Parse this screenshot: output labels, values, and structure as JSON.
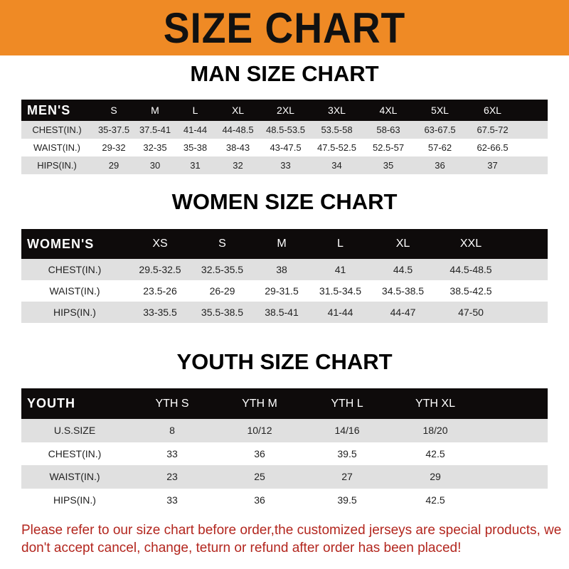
{
  "title": "SIZE CHART",
  "men": {
    "heading": "MAN SIZE CHART",
    "header": [
      "MEN'S",
      "S",
      "M",
      "L",
      "XL",
      "2XL",
      "3XL",
      "4XL",
      "5XL",
      "6XL"
    ],
    "rows": [
      [
        "CHEST(IN.)",
        "35-37.5",
        "37.5-41",
        "41-44",
        "44-48.5",
        "48.5-53.5",
        "53.5-58",
        "58-63",
        "63-67.5",
        "67.5-72"
      ],
      [
        "WAIST(IN.)",
        "29-32",
        "32-35",
        "35-38",
        "38-43",
        "43-47.5",
        "47.5-52.5",
        "52.5-57",
        "57-62",
        "62-66.5"
      ],
      [
        "HIPS(IN.)",
        "29",
        "30",
        "31",
        "32",
        "33",
        "34",
        "35",
        "36",
        "37"
      ]
    ]
  },
  "women": {
    "heading": "WOMEN SIZE CHART",
    "header": [
      "WOMEN'S",
      "XS",
      "S",
      "M",
      "L",
      "XL",
      "XXL"
    ],
    "rows": [
      [
        "CHEST(IN.)",
        "29.5-32.5",
        "32.5-35.5",
        "38",
        "41",
        "44.5",
        "44.5-48.5"
      ],
      [
        "WAIST(IN.)",
        "23.5-26",
        "26-29",
        "29-31.5",
        "31.5-34.5",
        "34.5-38.5",
        "38.5-42.5"
      ],
      [
        "HIPS(IN.)",
        "33-35.5",
        "35.5-38.5",
        "38.5-41",
        "41-44",
        "44-47",
        "47-50"
      ]
    ]
  },
  "youth": {
    "heading": "YOUTH SIZE CHART",
    "header": [
      "YOUTH",
      "YTH S",
      "YTH M",
      "YTH L",
      "YTH XL"
    ],
    "rows": [
      [
        "U.S.SIZE",
        "8",
        "10/12",
        "14/16",
        "18/20"
      ],
      [
        "CHEST(IN.)",
        "33",
        "36",
        "39.5",
        "42.5"
      ],
      [
        "WAIST(IN.)",
        "23",
        "25",
        "27",
        "29"
      ],
      [
        "HIPS(IN.)",
        "33",
        "36",
        "39.5",
        "42.5"
      ]
    ]
  },
  "note": "Please refer to our size chart before order,the customized jerseys are special products, we don't accept cancel, change, teturn or refund after order has been placed!",
  "colors": {
    "banner": "#ef8a25",
    "header": "#0e0b0b",
    "stripe": "#e0e0e0",
    "note": "#b3261e"
  }
}
